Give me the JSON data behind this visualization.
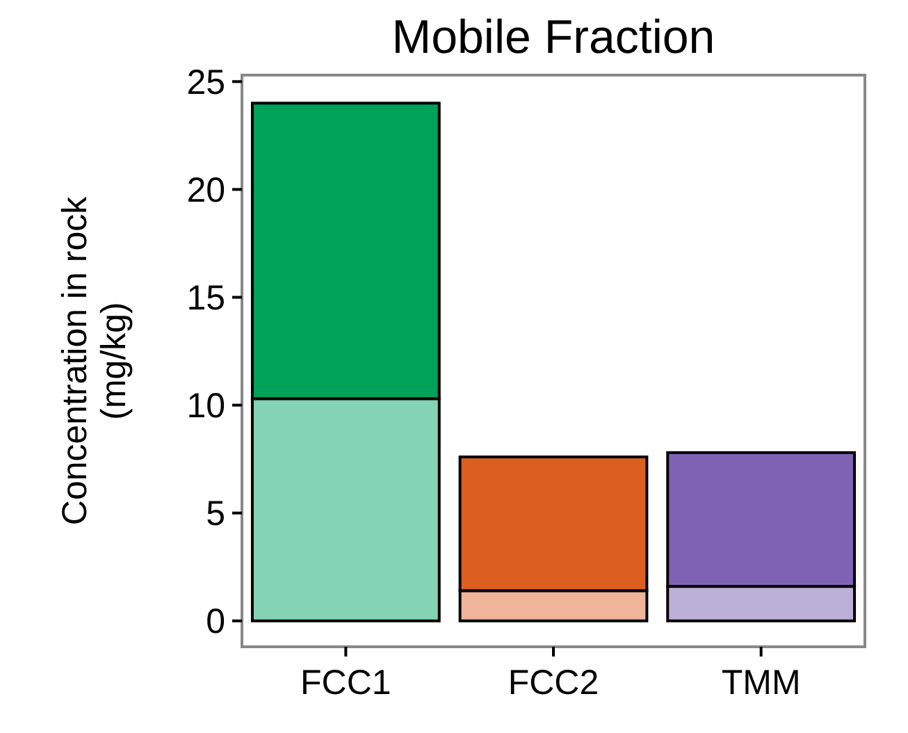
{
  "chart_data": {
    "type": "bar",
    "title": "Mobile Fraction",
    "ylabel": "Concentration in rock\n(mg/kg)",
    "categories": [
      "FCC1",
      "FCC2",
      "TMM"
    ],
    "stacked": true,
    "series": [
      {
        "colors": [
          "#84d3b4",
          "#efb49a",
          "#bcb0d8"
        ],
        "values": [
          10.3,
          1.4,
          1.6
        ]
      },
      {
        "colors": [
          "#00a25a",
          "#dc5f20",
          "#7e63b5"
        ],
        "values": [
          13.7,
          6.2,
          6.2
        ]
      }
    ],
    "ylim": [
      -1.2,
      25.3
    ],
    "yticks": [
      0,
      5,
      10,
      15,
      20,
      25
    ],
    "grid": false
  }
}
